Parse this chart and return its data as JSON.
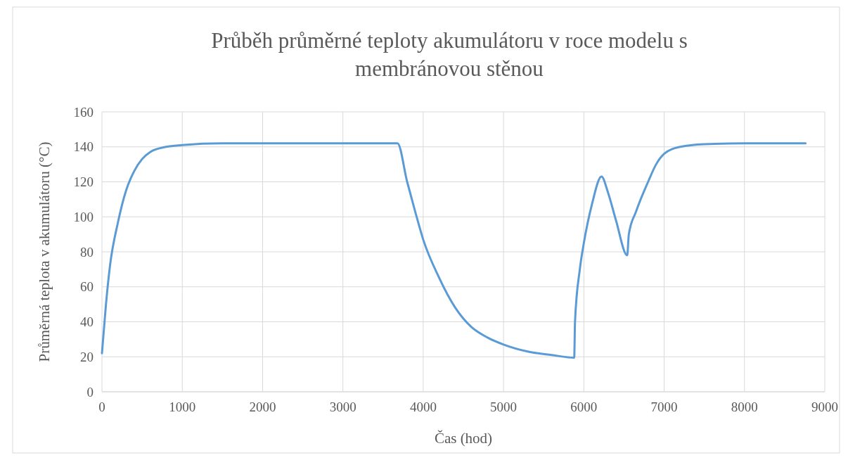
{
  "chart_data": {
    "type": "line",
    "title": "Průběh průměrné teploty akumulátoru v roce modelu s membránovou stěnou",
    "xlabel": "Čas (hod)",
    "ylabel": "Průměrná teplota v akumulátoru (°C)",
    "series": [
      {
        "color": "#5b9bd5",
        "x": [
          0,
          50,
          100,
          200,
          300,
          400,
          500,
          600,
          800,
          1000,
          1500,
          2500,
          3680,
          3800,
          3900,
          4000,
          4200,
          4400,
          4600,
          4800,
          5000,
          5300,
          5600,
          5880,
          5890,
          5950,
          6000,
          6100,
          6220,
          6300,
          6400,
          6540,
          6560,
          6650,
          6800,
          6900,
          7000,
          7200,
          7500,
          8000,
          8760
        ],
        "values": [
          22,
          50,
          72,
          97,
          115,
          126,
          133,
          137,
          140,
          141,
          142,
          142,
          142,
          120,
          103,
          87,
          65,
          48,
          37,
          31,
          27,
          23,
          21,
          19.5,
          40,
          70,
          85,
          107,
          123,
          114,
          98,
          78,
          90,
          103,
          120,
          130,
          136,
          140,
          141.5,
          142,
          142
        ]
      }
    ],
    "xlim": [
      0,
      9000
    ],
    "xticks": [
      0,
      1000,
      2000,
      3000,
      4000,
      5000,
      6000,
      7000,
      8000,
      9000
    ],
    "ylim": [
      0,
      160
    ],
    "yticks": [
      0,
      20,
      40,
      60,
      80,
      100,
      120,
      140,
      160
    ],
    "grid": true,
    "marker": "none",
    "line_style": "solid"
  }
}
